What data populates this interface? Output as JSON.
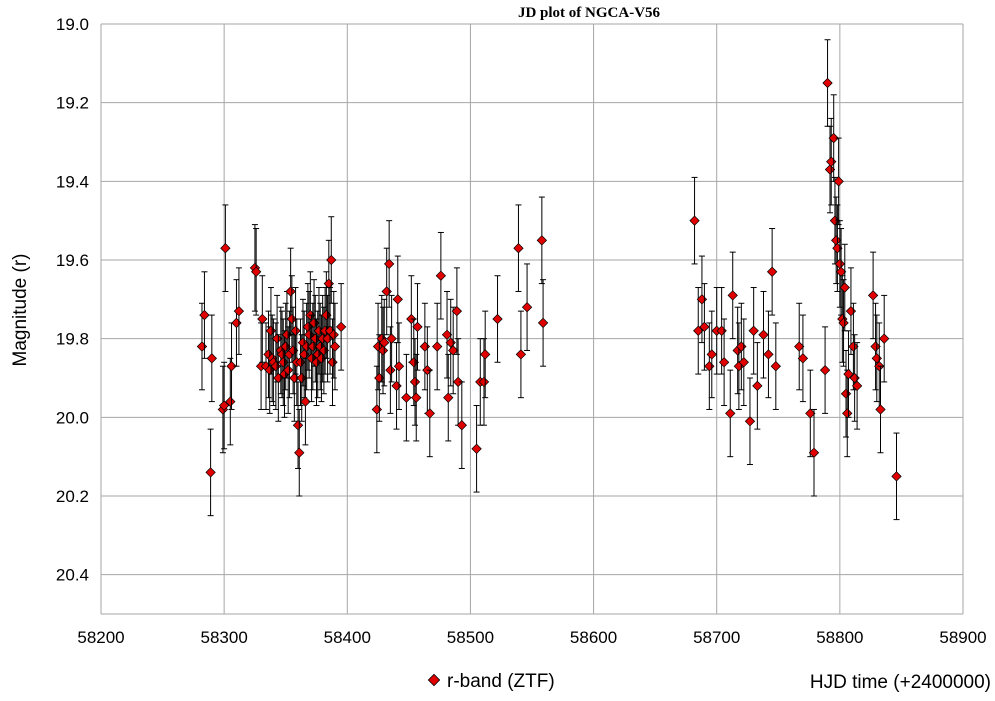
{
  "chart_data": {
    "type": "scatter",
    "title": "JD plot of NGCA-V56",
    "xlabel": "HJD time (+2400000)",
    "ylabel": "Magnitude (r)",
    "xlim": [
      58200,
      58900
    ],
    "ylim": [
      19.0,
      20.5
    ],
    "y_inverted": true,
    "xticks": [
      58200,
      58300,
      58400,
      58500,
      58600,
      58700,
      58800,
      58900
    ],
    "yticks": [
      "19.0",
      "19.2",
      "19.4",
      "19.6",
      "19.8",
      "20.0",
      "20.2",
      "20.4"
    ],
    "grid": true,
    "legend_position": "bottom-center",
    "series": [
      {
        "name": "r-band (ZTF)",
        "marker_color": "#e00000",
        "marker_edge": "#000000",
        "error_bar": 0.11,
        "points": [
          [
            58282,
            19.82
          ],
          [
            58284,
            19.74
          ],
          [
            58289,
            20.14
          ],
          [
            58290,
            19.85
          ],
          [
            58299,
            19.98
          ],
          [
            58300,
            19.97
          ],
          [
            58301,
            19.57
          ],
          [
            58305,
            19.96
          ],
          [
            58306,
            19.87
          ],
          [
            58310,
            19.76
          ],
          [
            58312,
            19.73
          ],
          [
            58325,
            19.62
          ],
          [
            58326,
            19.63
          ],
          [
            58330,
            19.87
          ],
          [
            58331,
            19.75
          ],
          [
            58334,
            19.87
          ],
          [
            58336,
            19.84
          ],
          [
            58337,
            19.88
          ],
          [
            58338,
            19.78
          ],
          [
            58339,
            19.85
          ],
          [
            58340,
            19.86
          ],
          [
            58342,
            19.87
          ],
          [
            58343,
            19.8
          ],
          [
            58344,
            19.9
          ],
          [
            58346,
            19.83
          ],
          [
            58347,
            19.84
          ],
          [
            58348,
            19.86
          ],
          [
            58349,
            19.89
          ],
          [
            58350,
            19.82
          ],
          [
            58351,
            19.79
          ],
          [
            58352,
            19.88
          ],
          [
            58353,
            19.84
          ],
          [
            58354,
            19.68
          ],
          [
            58355,
            19.75
          ],
          [
            58356,
            19.83
          ],
          [
            58357,
            19.9
          ],
          [
            58358,
            19.78
          ],
          [
            58359,
            19.86
          ],
          [
            58360,
            20.02
          ],
          [
            58361,
            20.09
          ],
          [
            58362,
            19.86
          ],
          [
            58363,
            19.9
          ],
          [
            58364,
            19.81
          ],
          [
            58365,
            19.84
          ],
          [
            58366,
            19.96
          ],
          [
            58367,
            19.82
          ],
          [
            58368,
            19.77
          ],
          [
            58369,
            19.79
          ],
          [
            58370,
            19.74
          ],
          [
            58371,
            19.85
          ],
          [
            58372,
            19.82
          ],
          [
            58373,
            19.76
          ],
          [
            58374,
            19.8
          ],
          [
            58375,
            19.86
          ],
          [
            58376,
            19.84
          ],
          [
            58377,
            19.78
          ],
          [
            58378,
            19.82
          ],
          [
            58379,
            19.85
          ],
          [
            58380,
            19.8
          ],
          [
            58381,
            19.83
          ],
          [
            58382,
            19.78
          ],
          [
            58383,
            19.74
          ],
          [
            58384,
            19.8
          ],
          [
            58385,
            19.66
          ],
          [
            58386,
            19.78
          ],
          [
            58387,
            19.6
          ],
          [
            58388,
            19.86
          ],
          [
            58389,
            19.79
          ],
          [
            58390,
            19.82
          ],
          [
            58395,
            19.77
          ],
          [
            58424,
            19.98
          ],
          [
            58425,
            19.82
          ],
          [
            58426,
            19.9
          ],
          [
            58428,
            19.8
          ],
          [
            58429,
            19.83
          ],
          [
            58430,
            19.81
          ],
          [
            58432,
            19.68
          ],
          [
            58434,
            19.61
          ],
          [
            58435,
            19.88
          ],
          [
            58436,
            19.8
          ],
          [
            58440,
            19.92
          ],
          [
            58441,
            19.7
          ],
          [
            58442,
            19.87
          ],
          [
            58448,
            19.95
          ],
          [
            58452,
            19.75
          ],
          [
            58454,
            19.86
          ],
          [
            58455,
            19.91
          ],
          [
            58456,
            19.95
          ],
          [
            58457,
            19.77
          ],
          [
            58463,
            19.82
          ],
          [
            58465,
            19.88
          ],
          [
            58467,
            19.99
          ],
          [
            58473,
            19.82
          ],
          [
            58476,
            19.64
          ],
          [
            58481,
            19.79
          ],
          [
            58482,
            19.95
          ],
          [
            58484,
            19.81
          ],
          [
            58486,
            19.83
          ],
          [
            58489,
            19.73
          ],
          [
            58490,
            19.91
          ],
          [
            58493,
            20.02
          ],
          [
            58505,
            20.08
          ],
          [
            58508,
            19.91
          ],
          [
            58511,
            19.91
          ],
          [
            58512,
            19.84
          ],
          [
            58522,
            19.75
          ],
          [
            58539,
            19.57
          ],
          [
            58541,
            19.84
          ],
          [
            58546,
            19.72
          ],
          [
            58558,
            19.55
          ],
          [
            58559,
            19.76
          ],
          [
            58682,
            19.5
          ],
          [
            58685,
            19.78
          ],
          [
            58688,
            19.7
          ],
          [
            58690,
            19.77
          ],
          [
            58694,
            19.87
          ],
          [
            58696,
            19.84
          ],
          [
            58700,
            19.78
          ],
          [
            58704,
            19.78
          ],
          [
            58706,
            19.86
          ],
          [
            58711,
            19.99
          ],
          [
            58713,
            19.69
          ],
          [
            58717,
            19.83
          ],
          [
            58718,
            19.87
          ],
          [
            58720,
            19.82
          ],
          [
            58722,
            19.86
          ],
          [
            58727,
            20.01
          ],
          [
            58730,
            19.78
          ],
          [
            58733,
            19.92
          ],
          [
            58738,
            19.79
          ],
          [
            58742,
            19.84
          ],
          [
            58745,
            19.63
          ],
          [
            58748,
            19.87
          ],
          [
            58767,
            19.82
          ],
          [
            58770,
            19.85
          ],
          [
            58776,
            19.99
          ],
          [
            58779,
            20.09
          ],
          [
            58788,
            19.88
          ],
          [
            58790,
            19.15
          ],
          [
            58792,
            19.37
          ],
          [
            58793,
            19.35
          ],
          [
            58795,
            19.29
          ],
          [
            58796,
            19.5
          ],
          [
            58797,
            19.55
          ],
          [
            58798,
            19.57
          ],
          [
            58799,
            19.4
          ],
          [
            58800,
            19.61
          ],
          [
            58801,
            19.63
          ],
          [
            58802,
            19.75
          ],
          [
            58803,
            19.76
          ],
          [
            58804,
            19.67
          ],
          [
            58805,
            19.94
          ],
          [
            58806,
            19.99
          ],
          [
            58807,
            19.89
          ],
          [
            58809,
            19.73
          ],
          [
            58811,
            19.82
          ],
          [
            58812,
            19.9
          ],
          [
            58814,
            19.92
          ],
          [
            58827,
            19.69
          ],
          [
            58829,
            19.82
          ],
          [
            58830,
            19.85
          ],
          [
            58832,
            19.87
          ],
          [
            58833,
            19.98
          ],
          [
            58836,
            19.8
          ],
          [
            58846,
            20.15
          ]
        ]
      }
    ]
  }
}
